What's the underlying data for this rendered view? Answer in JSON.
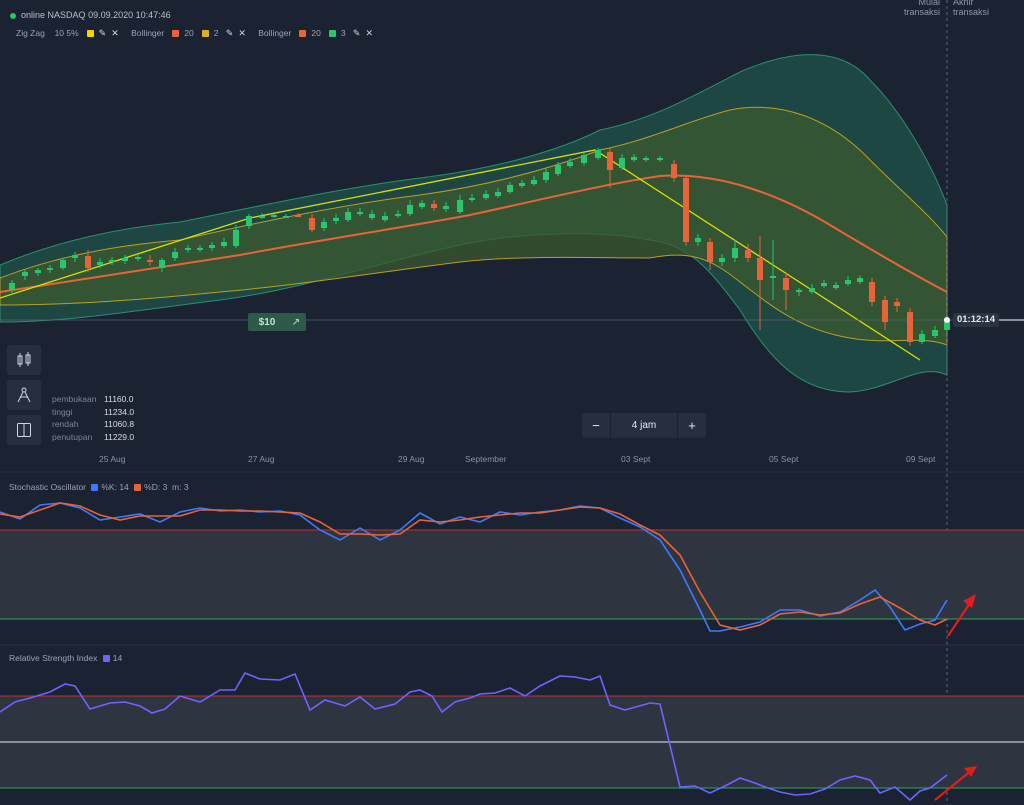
{
  "header": {
    "status": "online",
    "symbol": "NASDAQ",
    "datetime": "09.09.2020 10:47:46"
  },
  "indicators": [
    {
      "name": "Zig Zag",
      "params": "10 5%",
      "color": "#f5d200"
    },
    {
      "name": "Bollinger",
      "params": "20",
      "color": "#e8633a",
      "param2": "2",
      "color2": "#e0b020"
    },
    {
      "name": "Bollinger",
      "params": "20",
      "color": "#e8633a",
      "param2": "3",
      "color2": "#28c76f"
    }
  ],
  "markers": {
    "start": "Mulai transaksi",
    "end": "Akhir transaksi"
  },
  "ohlc": [
    {
      "label": "pembukaan",
      "value": "11160.0"
    },
    {
      "label": "tinggi",
      "value": "11234.0"
    },
    {
      "label": "rendah",
      "value": "11060.8"
    },
    {
      "label": "penutupan",
      "value": "11229.0"
    }
  ],
  "price_tag": {
    "amount": "$10"
  },
  "timer": "01:12:14",
  "timeframe": {
    "minus": "−",
    "label": "4 jam",
    "plus": "+"
  },
  "x_labels": [
    "25 Aug",
    "27 Aug",
    "29 Aug",
    "September",
    "03 Sept",
    "05 Sept",
    "09 Sept"
  ],
  "stochastic": {
    "title": "Stochastic Oscillator",
    "k_label": "%K: 14",
    "d_label": "%D: 3",
    "m_label": "m: 3",
    "k_color": "#3f79ff",
    "d_color": "#e8633a"
  },
  "rsi": {
    "title": "Relative Strength Index",
    "period": "14",
    "color": "#6f63ff"
  },
  "colors": {
    "up": "#28c76f",
    "down": "#e8633a",
    "zigzag": "#d8e000",
    "signal_arrow": "#e31d1d"
  }
}
